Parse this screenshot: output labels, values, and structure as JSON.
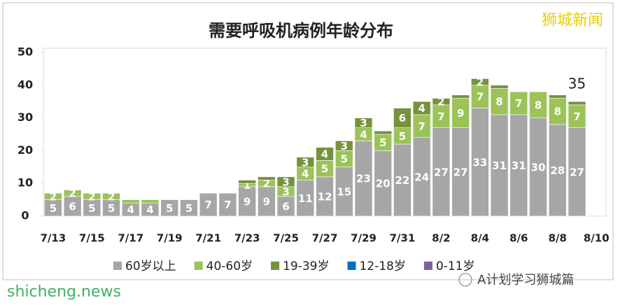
{
  "chart_data": {
    "type": "stacked-bar",
    "title": "需要呼吸机病例年龄分布",
    "categories": [
      "7/13",
      null,
      "7/15",
      null,
      "7/17",
      null,
      "7/19",
      null,
      "7/21",
      null,
      "7/23",
      null,
      "7/25",
      null,
      "7/27",
      null,
      "7/29",
      null,
      "7/31",
      null,
      "8/2",
      null,
      "8/4",
      null,
      "8/6",
      null,
      "8/8",
      null,
      "8/10"
    ],
    "series": [
      {
        "name": "60岁以上",
        "color": "#a6a6a6",
        "values": [
          5,
          6,
          5,
          5,
          4,
          4,
          5,
          5,
          7,
          7,
          9,
          9,
          6,
          11,
          12,
          15,
          23,
          20,
          22,
          24,
          27,
          27,
          33,
          31,
          31,
          30,
          28,
          27,
          null
        ],
        "value_labels": [
          "5",
          "6",
          "5",
          "5",
          "4",
          "4",
          "5",
          "5",
          "7",
          "7",
          "9",
          "9",
          "6",
          "11",
          "12",
          "15",
          "23",
          "20",
          "22",
          "24",
          "27",
          "27",
          "33",
          "31",
          "31",
          "30",
          "28",
          "27",
          null
        ]
      },
      {
        "name": "40-60岁",
        "color": "#9bc35a",
        "values": [
          2,
          2,
          2,
          2,
          1,
          1,
          0,
          0,
          0,
          0,
          1,
          2,
          3,
          4,
          5,
          5,
          4,
          5,
          5,
          7,
          7,
          9,
          7,
          8,
          7,
          8,
          8,
          7,
          null
        ],
        "value_labels": [
          "2",
          "2",
          "2",
          "2",
          null,
          null,
          null,
          null,
          null,
          null,
          "1",
          "2",
          "3",
          "4",
          "5",
          "5",
          "4",
          "5",
          "5",
          "7",
          "7",
          "9",
          "7",
          "8",
          "7",
          "8",
          "8",
          "7",
          null
        ]
      },
      {
        "name": "19-39岁",
        "color": "#76923c",
        "values": [
          0,
          0,
          0,
          0,
          0,
          0,
          0,
          0,
          0,
          0,
          1,
          1,
          3,
          3,
          4,
          3,
          3,
          1,
          6,
          4,
          2,
          1,
          2,
          1,
          0,
          0,
          1,
          1,
          null
        ],
        "value_labels": [
          null,
          null,
          null,
          null,
          null,
          null,
          null,
          null,
          null,
          null,
          null,
          null,
          "3",
          "3",
          "4",
          "3",
          "3",
          null,
          "6",
          "4",
          "2",
          null,
          "2",
          null,
          null,
          null,
          null,
          null,
          null
        ]
      },
      {
        "name": "12-18岁",
        "color": "#0070c0",
        "values": [
          0,
          0,
          0,
          0,
          0,
          0,
          0,
          0,
          0,
          0,
          0,
          0,
          0,
          0,
          0,
          0,
          0,
          0,
          0,
          0,
          0,
          0,
          0,
          0,
          0,
          0,
          0,
          0,
          null
        ]
      },
      {
        "name": "0-11岁",
        "color": "#7e5fa2",
        "values": [
          0,
          0,
          0,
          0,
          0,
          0,
          0,
          0,
          0,
          0,
          0,
          0,
          0,
          0,
          0,
          0,
          0,
          0,
          0,
          0,
          0,
          0,
          0,
          0,
          0,
          0,
          0,
          0,
          null
        ]
      }
    ],
    "ylim": [
      0,
      50
    ],
    "yticks": [
      0,
      10,
      20,
      30,
      40,
      50
    ],
    "grid": false,
    "legend": "bottom",
    "annotation": "35"
  },
  "watermarks": {
    "top": "狮城新闻",
    "bottom_left": "shicheng.news",
    "bottom_right": "A计划学习狮城篇"
  }
}
